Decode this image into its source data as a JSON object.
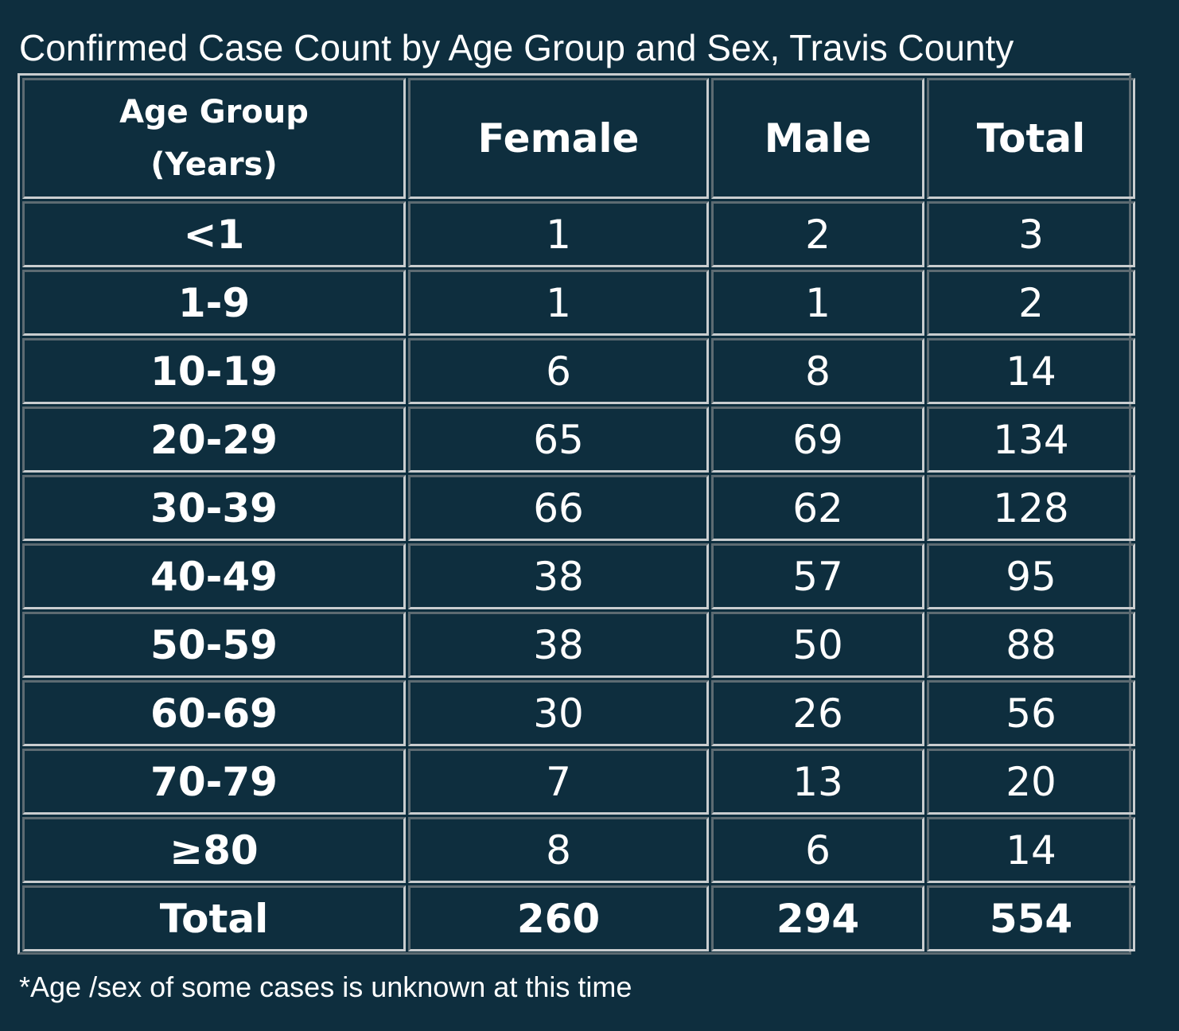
{
  "title": "Confirmed Case Count by Age Group and Sex, Travis County",
  "footnote": "*Age /sex of some cases is unknown at this time",
  "chart_data": {
    "type": "table",
    "title": "Confirmed Case Count by Age Group and Sex, Travis County",
    "headers": {
      "age_line1": "Age Group",
      "age_line2": "(Years)",
      "female": "Female",
      "male": "Male",
      "total": "Total"
    },
    "rows": [
      {
        "age": "<1",
        "female": "1",
        "male": "2",
        "total": "3"
      },
      {
        "age": "1-9",
        "female": "1",
        "male": "1",
        "total": "2"
      },
      {
        "age": "10-19",
        "female": "6",
        "male": "8",
        "total": "14"
      },
      {
        "age": "20-29",
        "female": "65",
        "male": "69",
        "total": "134"
      },
      {
        "age": "30-39",
        "female": "66",
        "male": "62",
        "total": "128"
      },
      {
        "age": "40-49",
        "female": "38",
        "male": "57",
        "total": "95"
      },
      {
        "age": "50-59",
        "female": "38",
        "male": "50",
        "total": "88"
      },
      {
        "age": "60-69",
        "female": "30",
        "male": "26",
        "total": "56"
      },
      {
        "age": "70-79",
        "female": "7",
        "male": "13",
        "total": "20"
      },
      {
        "age": "≥80",
        "female": "8",
        "male": "6",
        "total": "14"
      }
    ],
    "total_row": {
      "label": "Total",
      "female": "260",
      "male": "294",
      "total": "554"
    }
  }
}
